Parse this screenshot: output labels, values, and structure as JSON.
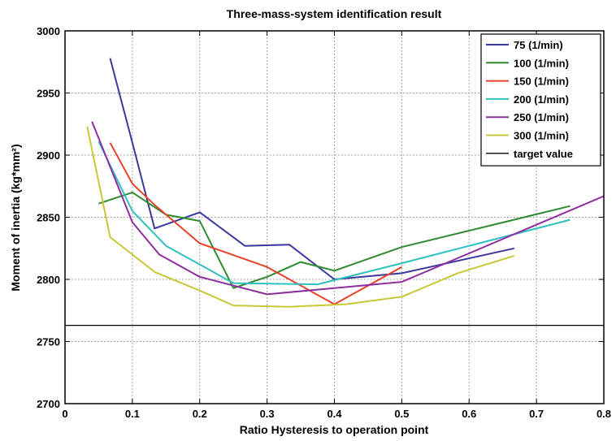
{
  "chart_data": {
    "type": "line",
    "title": "Three-mass-system identification result",
    "xlabel": "Ratio Hysteresis to operation point",
    "ylabel": "Moment of inertia (kg*mm²)",
    "xlim": [
      0,
      0.8
    ],
    "ylim": [
      2700,
      3000
    ],
    "xticks": [
      "0",
      "0.1",
      "0.2",
      "0.3",
      "0.4",
      "0.5",
      "0.6",
      "0.7",
      "0.8"
    ],
    "yticks": [
      "2700",
      "2750",
      "2800",
      "2850",
      "2900",
      "2950",
      "3000"
    ],
    "grid": true,
    "legend_position": "top-right",
    "series": [
      {
        "name": "75 (1/min)",
        "color": "#3a3a9e",
        "x": [
          0.067,
          0.1,
          0.133,
          0.2,
          0.267,
          0.333,
          0.4,
          0.5,
          0.667
        ],
        "y": [
          2978,
          2910,
          2841,
          2854,
          2827,
          2828,
          2800,
          2805,
          2825
        ]
      },
      {
        "name": "100 (1/min)",
        "color": "#2e8b2e",
        "x": [
          0.05,
          0.1,
          0.15,
          0.2,
          0.25,
          0.3,
          0.35,
          0.4,
          0.5,
          0.75
        ],
        "y": [
          2861,
          2870,
          2852,
          2847,
          2793,
          2802,
          2814,
          2807,
          2826,
          2859
        ]
      },
      {
        "name": "150 (1/min)",
        "color": "#e8412a",
        "x": [
          0.067,
          0.1,
          0.133,
          0.2,
          0.3,
          0.4,
          0.5
        ],
        "y": [
          2910,
          2877,
          2860,
          2829,
          2810,
          2780,
          2810
        ]
      },
      {
        "name": "200 (1/min)",
        "color": "#30c0c0",
        "x": [
          0.05,
          0.1,
          0.15,
          0.25,
          0.375,
          0.5,
          0.75
        ],
        "y": [
          2911,
          2855,
          2827,
          2797,
          2796,
          2813,
          2848
        ]
      },
      {
        "name": "250 (1/min)",
        "color": "#8e2e9e",
        "x": [
          0.04,
          0.1,
          0.14,
          0.2,
          0.3,
          0.4,
          0.5,
          0.8
        ],
        "y": [
          2927,
          2846,
          2820,
          2802,
          2788,
          2793,
          2798,
          2867
        ]
      },
      {
        "name": "300 (1/min)",
        "color": "#c8c838",
        "x": [
          0.033,
          0.067,
          0.133,
          0.2,
          0.25,
          0.333,
          0.417,
          0.5,
          0.583,
          0.667
        ],
        "y": [
          2923,
          2834,
          2806,
          2791,
          2779,
          2778,
          2780,
          2786,
          2805,
          2819
        ]
      },
      {
        "name": "target value",
        "color": "#000000",
        "x": [
          0,
          0.8
        ],
        "y": [
          2763,
          2763
        ]
      }
    ]
  }
}
